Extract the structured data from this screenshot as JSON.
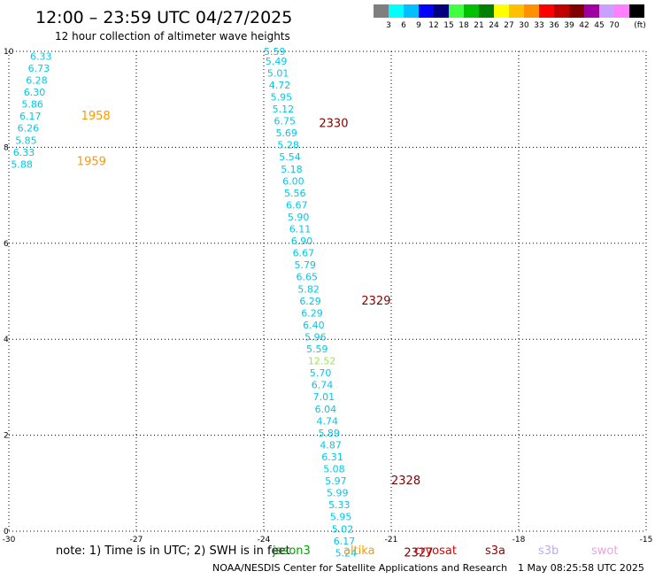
{
  "header": {
    "title": "12:00 – 23:59 UTC 04/27/2025",
    "subtitle": "12 hour collection of altimeter wave heights"
  },
  "colorbar": {
    "colors": [
      "#7f7f7f",
      "#00ffff",
      "#00bfff",
      "#0000ff",
      "#00007f",
      "#40ff40",
      "#00c000",
      "#008000",
      "#ffff00",
      "#ffc000",
      "#ff9000",
      "#ff0000",
      "#c00000",
      "#800000",
      "#a000a0",
      "#c8a0ff",
      "#ff80ff",
      "#000000"
    ],
    "labels": [
      "3",
      "6",
      "9",
      "12",
      "15",
      "18",
      "21",
      "24",
      "27",
      "30",
      "33",
      "36",
      "39",
      "42",
      "45",
      "70"
    ],
    "unit": "(ft)"
  },
  "chart_data": {
    "type": "scatter",
    "title": "12:00 – 23:59 UTC 04/27/2025",
    "subtitle": "12 hour collection of altimeter wave heights",
    "xlim": [
      -30,
      -15
    ],
    "ylim": [
      0,
      10
    ],
    "x_ticks": [
      "-30",
      "-27",
      "-24",
      "-21",
      "-18",
      "-15"
    ],
    "y_ticks": [
      "0",
      "2",
      "4",
      "6",
      "8",
      "10"
    ],
    "grid": true,
    "series": [
      {
        "name": "jason3",
        "color": "#00c8e8",
        "points": [
          {
            "x": -29.5,
            "y": 9.9,
            "v": "6.33"
          },
          {
            "x": -29.55,
            "y": 9.65,
            "v": "6.73"
          },
          {
            "x": -29.6,
            "y": 9.4,
            "v": "6.28"
          },
          {
            "x": -29.65,
            "y": 9.15,
            "v": "6.30"
          },
          {
            "x": -29.7,
            "y": 8.9,
            "v": "5.86"
          },
          {
            "x": -29.75,
            "y": 8.65,
            "v": "6.17"
          },
          {
            "x": -29.8,
            "y": 8.4,
            "v": "6.26"
          },
          {
            "x": -29.85,
            "y": 8.15,
            "v": "5.85"
          },
          {
            "x": -29.9,
            "y": 7.9,
            "v": "6.33"
          },
          {
            "x": -29.95,
            "y": 7.65,
            "v": "5.88"
          }
        ]
      },
      {
        "name": "altika",
        "color": "#00c8e8",
        "points": [
          {
            "x": -24.0,
            "y": 10.0,
            "v": "5.59"
          },
          {
            "x": -23.96,
            "y": 9.8,
            "v": "5.49"
          },
          {
            "x": -23.92,
            "y": 9.55,
            "v": "5.01"
          },
          {
            "x": -23.88,
            "y": 9.3,
            "v": "4.72"
          },
          {
            "x": -23.84,
            "y": 9.05,
            "v": "5.95"
          },
          {
            "x": -23.8,
            "y": 8.8,
            "v": "5.12"
          },
          {
            "x": -23.76,
            "y": 8.55,
            "v": "6.75"
          },
          {
            "x": -23.72,
            "y": 8.3,
            "v": "5.69"
          },
          {
            "x": -23.68,
            "y": 8.05,
            "v": "5.28"
          },
          {
            "x": -23.64,
            "y": 7.8,
            "v": "5.54"
          },
          {
            "x": -23.6,
            "y": 7.55,
            "v": "5.18"
          },
          {
            "x": -23.56,
            "y": 7.3,
            "v": "6.00"
          },
          {
            "x": -23.52,
            "y": 7.05,
            "v": "5.56"
          },
          {
            "x": -23.48,
            "y": 6.8,
            "v": "6.67"
          },
          {
            "x": -23.44,
            "y": 6.55,
            "v": "5.90"
          },
          {
            "x": -23.4,
            "y": 6.3,
            "v": "6.11"
          },
          {
            "x": -23.36,
            "y": 6.05,
            "v": "6.90"
          },
          {
            "x": -23.32,
            "y": 5.8,
            "v": "6.67"
          },
          {
            "x": -23.28,
            "y": 5.55,
            "v": "5.79"
          },
          {
            "x": -23.24,
            "y": 5.3,
            "v": "6.65"
          },
          {
            "x": -23.2,
            "y": 5.05,
            "v": "5.82"
          },
          {
            "x": -23.16,
            "y": 4.8,
            "v": "6.29"
          },
          {
            "x": -23.12,
            "y": 4.55,
            "v": "6.29"
          },
          {
            "x": -23.08,
            "y": 4.3,
            "v": "6.40"
          },
          {
            "x": -23.04,
            "y": 4.05,
            "v": "5.96"
          },
          {
            "x": -23.0,
            "y": 3.8,
            "v": "5.59"
          },
          {
            "x": -22.96,
            "y": 3.55,
            "v": "12.52"
          },
          {
            "x": -22.92,
            "y": 3.3,
            "v": "5.70"
          },
          {
            "x": -22.88,
            "y": 3.05,
            "v": "6.74"
          },
          {
            "x": -22.84,
            "y": 2.8,
            "v": "7.01"
          },
          {
            "x": -22.8,
            "y": 2.55,
            "v": "6.04"
          },
          {
            "x": -22.76,
            "y": 2.3,
            "v": "4.74"
          },
          {
            "x": -22.72,
            "y": 2.05,
            "v": "5.89"
          },
          {
            "x": -22.68,
            "y": 1.8,
            "v": "4.87"
          },
          {
            "x": -22.64,
            "y": 1.55,
            "v": "6.31"
          },
          {
            "x": -22.6,
            "y": 1.3,
            "v": "5.08"
          },
          {
            "x": -22.56,
            "y": 1.05,
            "v": "5.97"
          },
          {
            "x": -22.52,
            "y": 0.8,
            "v": "5.99"
          },
          {
            "x": -22.48,
            "y": 0.55,
            "v": "5.33"
          },
          {
            "x": -22.44,
            "y": 0.3,
            "v": "5.95"
          },
          {
            "x": -22.4,
            "y": 0.05,
            "v": "5.02"
          },
          {
            "x": -22.36,
            "y": -0.2,
            "v": "6.17"
          },
          {
            "x": -22.32,
            "y": -0.45,
            "v": "5.24"
          }
        ]
      }
    ],
    "time_labels": [
      {
        "x": -28.3,
        "y": 8.65,
        "text": "1958",
        "color": "#ff9900"
      },
      {
        "x": -28.4,
        "y": 7.7,
        "text": "1959",
        "color": "#ff9900"
      },
      {
        "x": -22.7,
        "y": 8.5,
        "text": "2330",
        "color": "#800000"
      },
      {
        "x": -21.7,
        "y": 4.8,
        "text": "2329",
        "color": "#800000"
      },
      {
        "x": -21.0,
        "y": 1.05,
        "text": "2328",
        "color": "#800000"
      },
      {
        "x": -20.7,
        "y": -0.45,
        "text": "2327",
        "color": "#800000"
      }
    ],
    "highlight_colors": {
      "12.52": "#a0e060"
    }
  },
  "legend": {
    "note": "note: 1) Time is in UTC; 2) SWH is in feet",
    "satellites": [
      {
        "name": "jason3",
        "color": "#00a000"
      },
      {
        "name": "altika",
        "color": "#ff9900"
      },
      {
        "name": "cryosat",
        "color": "#e00000"
      },
      {
        "name": "s3a",
        "color": "#900000"
      },
      {
        "name": "s3b",
        "color": "#c0a8f0"
      },
      {
        "name": "swot",
        "color": "#f0a0e0"
      }
    ]
  },
  "footer": {
    "credit": "NOAA/NESDIS Center for Satellite Applications and Research",
    "timestamp": "1 May 08:25:58 UTC 2025"
  }
}
